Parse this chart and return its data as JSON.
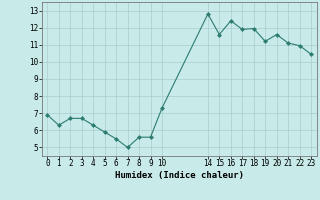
{
  "x": [
    0,
    1,
    2,
    3,
    4,
    5,
    6,
    7,
    8,
    9,
    10,
    14,
    15,
    16,
    17,
    18,
    19,
    20,
    21,
    22,
    23
  ],
  "y": [
    6.9,
    6.3,
    6.7,
    6.7,
    6.3,
    5.9,
    5.5,
    5.0,
    5.6,
    5.6,
    7.3,
    12.8,
    11.6,
    12.4,
    11.9,
    11.95,
    11.2,
    11.6,
    11.1,
    10.95,
    10.45
  ],
  "line_color": "#2d7d6e",
  "marker": "D",
  "marker_size": 2,
  "bg_color": "#c8eae8",
  "grid_color": "#aaccca",
  "xlabel": "Humidex (Indice chaleur)",
  "xlim": [
    -0.5,
    23.5
  ],
  "ylim": [
    4.5,
    13.5
  ],
  "xticks": [
    0,
    1,
    2,
    3,
    4,
    5,
    6,
    7,
    8,
    9,
    10,
    14,
    15,
    16,
    17,
    18,
    19,
    20,
    21,
    22,
    23
  ],
  "yticks": [
    5,
    6,
    7,
    8,
    9,
    10,
    11,
    12,
    13
  ],
  "xlabel_fontsize": 6.5,
  "tick_fontsize": 5.5
}
